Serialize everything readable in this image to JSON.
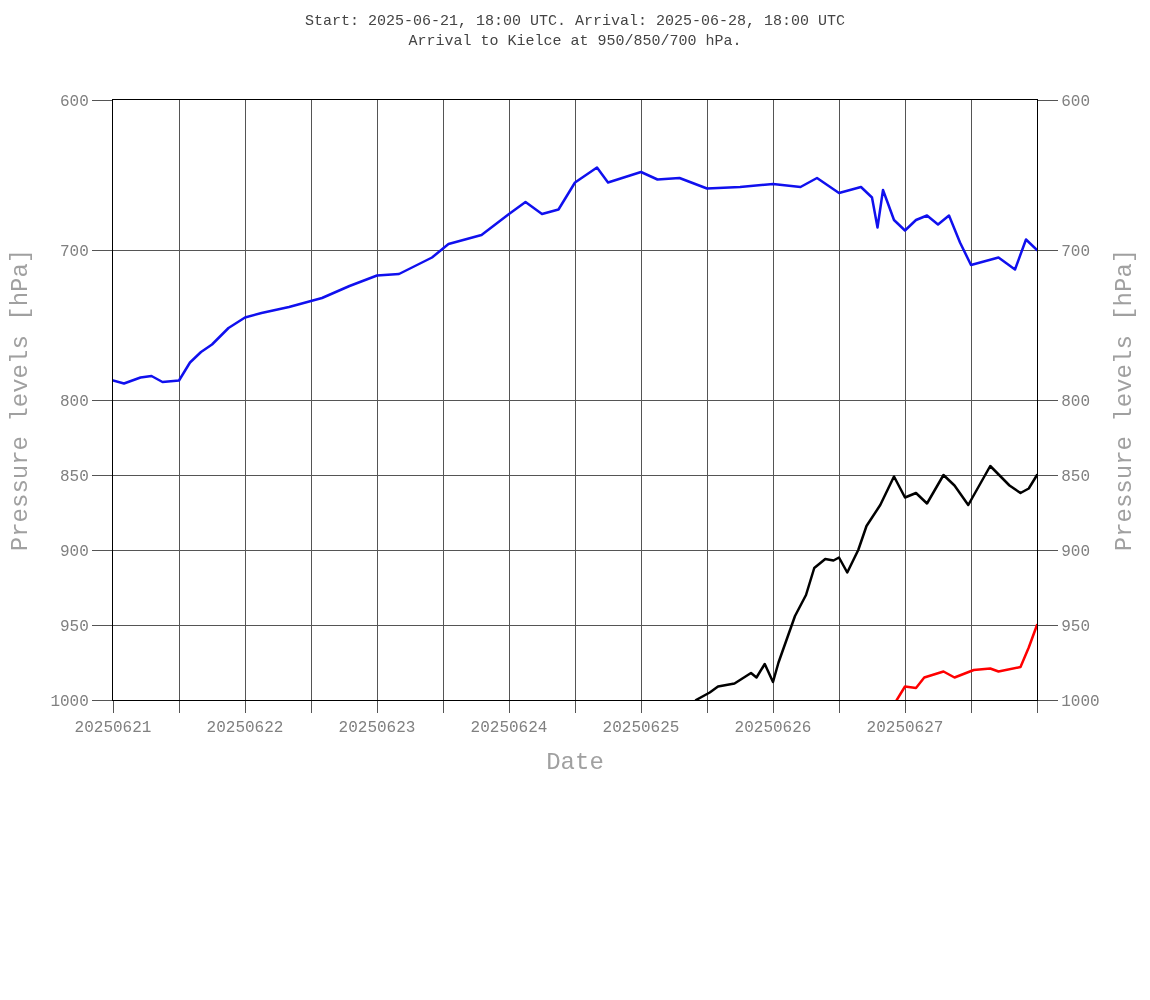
{
  "chart_data": {
    "type": "line",
    "title": "Start: 2025-06-21, 18:00 UTC. Arrival: 2025-06-28, 18:00 UTC",
    "subtitle": "Arrival to Kielce at 950/850/700 hPa.",
    "xlabel": "Date",
    "ylabel": "Pressure levels [hPa]",
    "y2label": "Pressure levels [hPa]",
    "xlim": [
      "2025-06-21T00:00",
      "2025-06-28T00:00"
    ],
    "xticks": [
      {
        "value": "2025-06-21T00:00",
        "label": "20250621"
      },
      {
        "value": "2025-06-21T12:00",
        "label": null
      },
      {
        "value": "2025-06-22T00:00",
        "label": "20250622"
      },
      {
        "value": "2025-06-22T12:00",
        "label": null
      },
      {
        "value": "2025-06-23T00:00",
        "label": "20250623"
      },
      {
        "value": "2025-06-23T12:00",
        "label": null
      },
      {
        "value": "2025-06-24T00:00",
        "label": "20250624"
      },
      {
        "value": "2025-06-24T12:00",
        "label": null
      },
      {
        "value": "2025-06-25T00:00",
        "label": "20250625"
      },
      {
        "value": "2025-06-25T12:00",
        "label": null
      },
      {
        "value": "2025-06-26T00:00",
        "label": "20250626"
      },
      {
        "value": "2025-06-26T12:00",
        "label": null
      },
      {
        "value": "2025-06-27T00:00",
        "label": "20250627"
      },
      {
        "value": "2025-06-27T12:00",
        "label": null
      },
      {
        "value": "2025-06-28T00:00",
        "label": null
      }
    ],
    "ylim": [
      1000,
      600
    ],
    "yticks": [
      600,
      700,
      800,
      850,
      900,
      950,
      1000
    ],
    "y2lim": [
      1000,
      600
    ],
    "y2ticks": [
      600,
      700,
      800,
      850,
      900,
      950,
      1000
    ],
    "grid": true,
    "line_style": "solid",
    "series": [
      {
        "color": "#1010ee",
        "x": [
          "2025-06-21T00:00",
          "2025-06-21T02:00",
          "2025-06-21T05:00",
          "2025-06-21T07:00",
          "2025-06-21T09:00",
          "2025-06-21T12:00",
          "2025-06-21T14:00",
          "2025-06-21T16:00",
          "2025-06-21T18:00",
          "2025-06-21T21:00",
          "2025-06-22T00:00",
          "2025-06-22T03:00",
          "2025-06-22T08:00",
          "2025-06-22T14:00",
          "2025-06-22T19:00",
          "2025-06-23T00:00",
          "2025-06-23T04:00",
          "2025-06-23T10:00",
          "2025-06-23T13:00",
          "2025-06-23T19:00",
          "2025-06-24T00:00",
          "2025-06-24T03:00",
          "2025-06-24T06:00",
          "2025-06-24T09:00",
          "2025-06-24T12:00",
          "2025-06-24T16:00",
          "2025-06-24T18:00",
          "2025-06-25T00:00",
          "2025-06-25T03:00",
          "2025-06-25T07:00",
          "2025-06-25T12:00",
          "2025-06-25T18:00",
          "2025-06-26T00:00",
          "2025-06-26T05:00",
          "2025-06-26T08:00",
          "2025-06-26T12:00",
          "2025-06-26T16:00",
          "2025-06-26T18:00",
          "2025-06-26T19:00",
          "2025-06-26T20:00",
          "2025-06-26T22:00",
          "2025-06-27T00:00",
          "2025-06-27T02:00",
          "2025-06-27T04:00",
          "2025-06-27T06:00",
          "2025-06-27T08:00",
          "2025-06-27T10:00",
          "2025-06-27T12:00",
          "2025-06-27T14:00",
          "2025-06-27T17:00",
          "2025-06-27T20:00",
          "2025-06-27T22:00",
          "2025-06-28T00:00"
        ],
        "values": [
          787,
          789,
          785,
          784,
          788,
          787,
          775,
          768,
          763,
          752,
          745,
          742,
          738,
          732,
          724,
          717,
          716,
          705,
          696,
          690,
          676,
          668,
          676,
          673,
          655,
          645,
          655,
          648,
          653,
          652,
          659,
          658,
          656,
          658,
          652,
          662,
          658,
          665,
          685,
          660,
          680,
          687,
          680,
          677,
          683,
          677,
          695,
          710,
          708,
          705,
          713,
          693,
          700
        ]
      },
      {
        "color": "#000000",
        "x": [
          "2025-06-25T10:00",
          "2025-06-25T12:30",
          "2025-06-25T14:00",
          "2025-06-25T17:00",
          "2025-06-25T20:00",
          "2025-06-25T21:00",
          "2025-06-25T22:30",
          "2025-06-26T00:00",
          "2025-06-26T01:00",
          "2025-06-26T04:00",
          "2025-06-26T06:00",
          "2025-06-26T07:30",
          "2025-06-26T09:30",
          "2025-06-26T11:00",
          "2025-06-26T12:00",
          "2025-06-26T13:30",
          "2025-06-26T15:30",
          "2025-06-26T17:00",
          "2025-06-26T19:30",
          "2025-06-26T22:00",
          "2025-06-27T00:00",
          "2025-06-27T02:00",
          "2025-06-27T04:00",
          "2025-06-27T07:00",
          "2025-06-27T09:00",
          "2025-06-27T11:30",
          "2025-06-27T15:30",
          "2025-06-27T19:00",
          "2025-06-27T21:00",
          "2025-06-27T22:30",
          "2025-06-28T00:00"
        ],
        "values": [
          1000,
          995,
          991,
          989,
          982,
          985,
          976,
          988,
          975,
          944,
          930,
          912,
          906,
          907,
          905,
          915,
          900,
          884,
          870,
          851,
          865,
          862,
          869,
          850,
          857,
          870,
          844,
          857,
          862,
          859,
          850
        ]
      },
      {
        "color": "#ff0000",
        "x": [
          "2025-06-26T22:30",
          "2025-06-27T00:00",
          "2025-06-27T02:00",
          "2025-06-27T03:30",
          "2025-06-27T07:00",
          "2025-06-27T09:00",
          "2025-06-27T12:30",
          "2025-06-27T15:30",
          "2025-06-27T17:00",
          "2025-06-27T21:00",
          "2025-06-27T22:30",
          "2025-06-28T00:00"
        ],
        "values": [
          1000,
          991,
          992,
          985,
          981,
          985,
          980,
          979,
          981,
          978,
          965,
          950
        ]
      }
    ]
  }
}
